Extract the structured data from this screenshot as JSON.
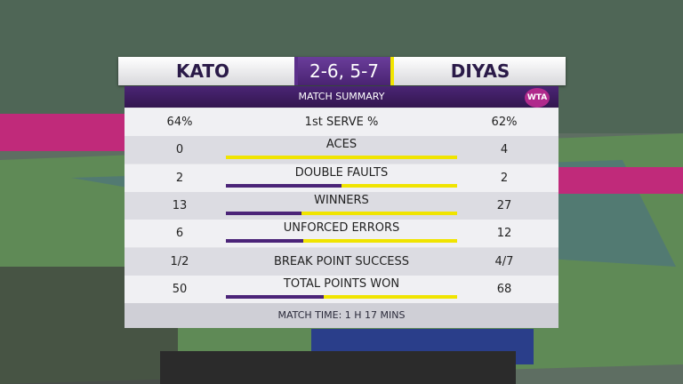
{
  "header": {
    "player_left": "KATO",
    "score": "2-6, 5-7",
    "player_right": "DIYAS"
  },
  "subtitle": "MATCH SUMMARY",
  "logo": "WTA",
  "rows": [
    {
      "label": "1st SERVE %",
      "left": "64%",
      "right": "62%"
    },
    {
      "label": "ACES",
      "left": 0,
      "right": 4
    },
    {
      "label": "DOUBLE FAULTS",
      "left": 2,
      "right": 2
    },
    {
      "label": "WINNERS",
      "left": 13,
      "right": 27
    },
    {
      "label": "UNFORCED ERRORS",
      "left": 6,
      "right": 12
    },
    {
      "label": "BREAK POINT SUCCESS",
      "left": "1/2",
      "right": "4/7"
    },
    {
      "label": "TOTAL POINTS WON",
      "left": 50,
      "right": 68
    }
  ],
  "footer": "MATCH TIME: 1 H 17 MINS"
}
